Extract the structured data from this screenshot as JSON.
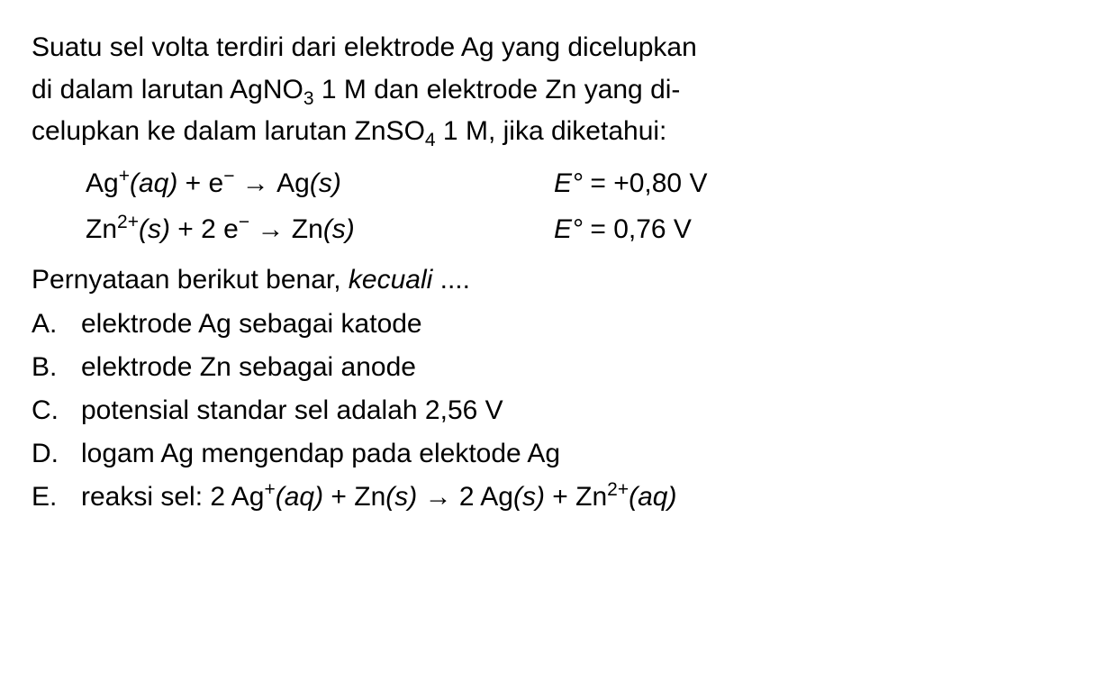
{
  "question": {
    "line1_part1": "Suatu sel volta terdiri dari elektrode Ag yang dicelupkan",
    "line2_prefix": "di dalam larutan AgNO",
    "line2_sub": "3",
    "line2_mid": " 1 M dan elektrode Zn yang di-",
    "line3_prefix": "celupkan ke dalam larutan ZnSO",
    "line3_sub": "4",
    "line3_suffix": " 1 M, jika diketahui:"
  },
  "equations": {
    "eq1": {
      "species1": "Ag",
      "charge1": "+",
      "state1": "(aq)",
      "plus": " + e",
      "echarge": "−",
      "arrow": "  →  ",
      "species2": "Ag",
      "state2": "(s)",
      "E_label": "E",
      "E_deg": "°",
      "E_eq": " = +0,80 V"
    },
    "eq2": {
      "species1": "Zn",
      "charge1": "2+",
      "state1": "(s)",
      "plus": " + 2 e",
      "echarge": "−",
      "arrow": "  →  ",
      "species2": "Zn",
      "state2": "(s)",
      "E_label": "E",
      "E_deg": "°",
      "E_eq": " = 0,76 V"
    }
  },
  "statement": {
    "prefix": "Pernyataan berikut benar, ",
    "italic": "kecuali",
    "suffix": " ...."
  },
  "options": {
    "A": {
      "letter": "A.",
      "text": "elektrode Ag sebagai katode"
    },
    "B": {
      "letter": "B.",
      "text": "elektrode Zn sebagai anode"
    },
    "C": {
      "letter": "C.",
      "text": "potensial standar sel adalah 2,56 V"
    },
    "D": {
      "letter": "D.",
      "text": "logam Ag mengendap pada elektode Ag"
    },
    "E": {
      "letter": "E.",
      "prefix": "reaksi sel: 2 Ag",
      "sup1": "+",
      "state1": "(aq)",
      "mid1": " + Zn",
      "state2": "(s)",
      "arrow": " → ",
      "mid2": "2 Ag",
      "state3": "(s)",
      "mid3": " + Zn",
      "sup2": "2+",
      "state4": "(aq)"
    }
  },
  "colors": {
    "text": "#000000",
    "background": "#ffffff"
  },
  "typography": {
    "body_fontsize": 30,
    "font_family": "Arial"
  }
}
